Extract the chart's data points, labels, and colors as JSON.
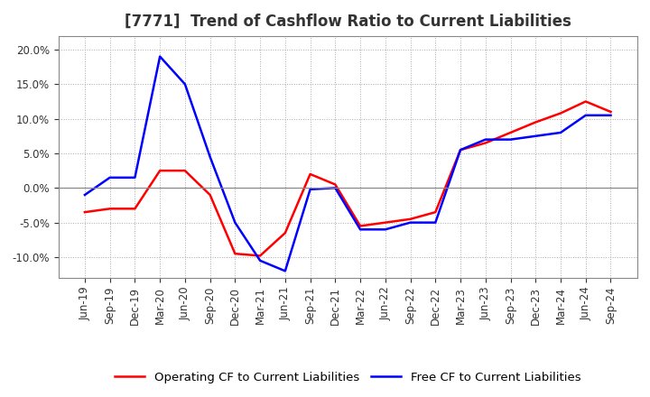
{
  "title": "[7771]  Trend of Cashflow Ratio to Current Liabilities",
  "x_labels": [
    "Jun-19",
    "Sep-19",
    "Dec-19",
    "Mar-20",
    "Jun-20",
    "Sep-20",
    "Dec-20",
    "Mar-21",
    "Jun-21",
    "Sep-21",
    "Dec-21",
    "Mar-22",
    "Jun-22",
    "Sep-22",
    "Dec-22",
    "Mar-23",
    "Jun-23",
    "Sep-23",
    "Dec-23",
    "Mar-24",
    "Jun-24",
    "Sep-24"
  ],
  "operating_cf": [
    -3.5,
    -3.0,
    -3.0,
    2.5,
    2.5,
    -1.0,
    -9.5,
    -9.8,
    -6.5,
    2.0,
    0.5,
    -5.5,
    -5.0,
    -4.5,
    -3.5,
    5.5,
    6.5,
    8.0,
    9.5,
    10.8,
    12.5,
    11.0
  ],
  "free_cf": [
    -1.0,
    1.5,
    1.5,
    19.0,
    15.0,
    4.5,
    -5.0,
    -10.5,
    -12.0,
    -0.2,
    0.0,
    -6.0,
    -6.0,
    -5.0,
    -5.0,
    5.5,
    7.0,
    7.0,
    7.5,
    8.0,
    10.5,
    10.5
  ],
  "operating_cf_color": "#ff0000",
  "free_cf_color": "#0000ff",
  "ylim": [
    -13.0,
    22.0
  ],
  "yticks": [
    -10.0,
    -5.0,
    0.0,
    5.0,
    10.0,
    15.0,
    20.0
  ],
  "legend_operating": "Operating CF to Current Liabilities",
  "legend_free": "Free CF to Current Liabilities",
  "background_color": "#ffffff",
  "grid_color": "#aaaaaa",
  "title_fontsize": 12,
  "tick_fontsize": 8.5,
  "legend_fontsize": 9.5
}
